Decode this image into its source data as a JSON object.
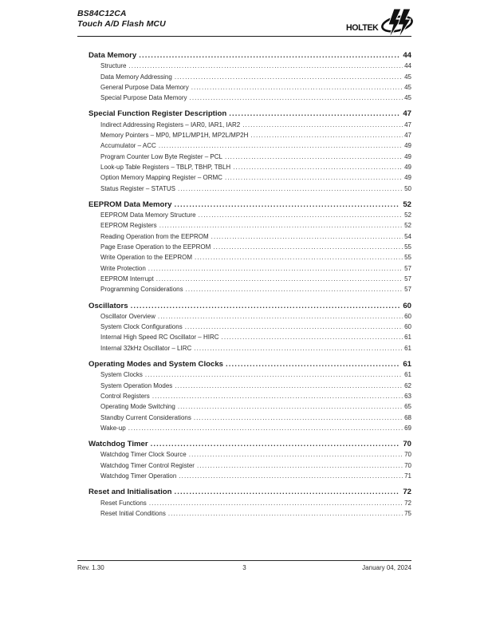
{
  "header": {
    "model": "BS84C12CA",
    "subtitle": "Touch A/D Flash MCU",
    "logo_text": "HOLTEK"
  },
  "toc": {
    "sections": [
      {
        "title": "Data Memory",
        "page": "44",
        "items": [
          {
            "title": "Structure",
            "page": "44"
          },
          {
            "title": "Data Memory Addressing",
            "page": "45"
          },
          {
            "title": "General Purpose Data Memory",
            "page": "45"
          },
          {
            "title": "Special Purpose Data Memory",
            "page": "45"
          }
        ]
      },
      {
        "title": "Special Function Register Description",
        "page": "47",
        "items": [
          {
            "title": "Indirect Addressing Registers – IAR0, IAR1, IAR2",
            "page": "47"
          },
          {
            "title": "Memory Pointers – MP0, MP1L/MP1H, MP2L/MP2H",
            "page": "47"
          },
          {
            "title": "Accumulator – ACC",
            "page": "49"
          },
          {
            "title": "Program Counter Low Byte Register – PCL",
            "page": "49"
          },
          {
            "title": "Look-up Table Registers – TBLP, TBHP, TBLH",
            "page": "49"
          },
          {
            "title": "Option Memory Mapping Register – ORMC",
            "page": "49"
          },
          {
            "title": "Status Register – STATUS",
            "page": "50"
          }
        ]
      },
      {
        "title": "EEPROM Data Memory",
        "page": "52",
        "items": [
          {
            "title": "EEPROM Data Memory Structure",
            "page": "52"
          },
          {
            "title": "EEPROM Registers",
            "page": "52"
          },
          {
            "title": "Reading Operation from the EEPROM",
            "page": "54"
          },
          {
            "title": "Page Erase Operation to the EEPROM",
            "page": "55"
          },
          {
            "title": "Write Operation to the EEPROM",
            "page": "55"
          },
          {
            "title": "Write Protection",
            "page": "57"
          },
          {
            "title": "EEPROM Interrupt",
            "page": "57"
          },
          {
            "title": "Programming Considerations",
            "page": "57"
          }
        ]
      },
      {
        "title": "Oscillators",
        "page": "60",
        "items": [
          {
            "title": "Oscillator Overview",
            "page": "60"
          },
          {
            "title": "System Clock Configurations",
            "page": "60"
          },
          {
            "title": "Internal High Speed RC Oscillator – HIRC",
            "page": "61"
          },
          {
            "title": "Internal 32kHz Oscillator – LIRC",
            "page": "61"
          }
        ]
      },
      {
        "title": "Operating Modes and System Clocks",
        "page": "61",
        "items": [
          {
            "title": "System Clocks",
            "page": "61"
          },
          {
            "title": "System Operation Modes",
            "page": "62"
          },
          {
            "title": "Control Registers",
            "page": "63"
          },
          {
            "title": "Operating Mode Switching",
            "page": "65"
          },
          {
            "title": "Standby Current Considerations",
            "page": "68"
          },
          {
            "title": "Wake-up",
            "page": "69"
          }
        ]
      },
      {
        "title": "Watchdog Timer",
        "page": "70",
        "items": [
          {
            "title": "Watchdog Timer Clock Source",
            "page": "70"
          },
          {
            "title": "Watchdog Timer Control Register",
            "page": "70"
          },
          {
            "title": "Watchdog Timer Operation",
            "page": "71"
          }
        ]
      },
      {
        "title": "Reset and Initialisation",
        "page": "72",
        "items": [
          {
            "title": "Reset Functions",
            "page": "72"
          },
          {
            "title": "Reset Initial Conditions",
            "page": "75"
          }
        ]
      }
    ]
  },
  "footer": {
    "revision": "Rev. 1.30",
    "page_number": "3",
    "date": "January 04, 2024"
  }
}
